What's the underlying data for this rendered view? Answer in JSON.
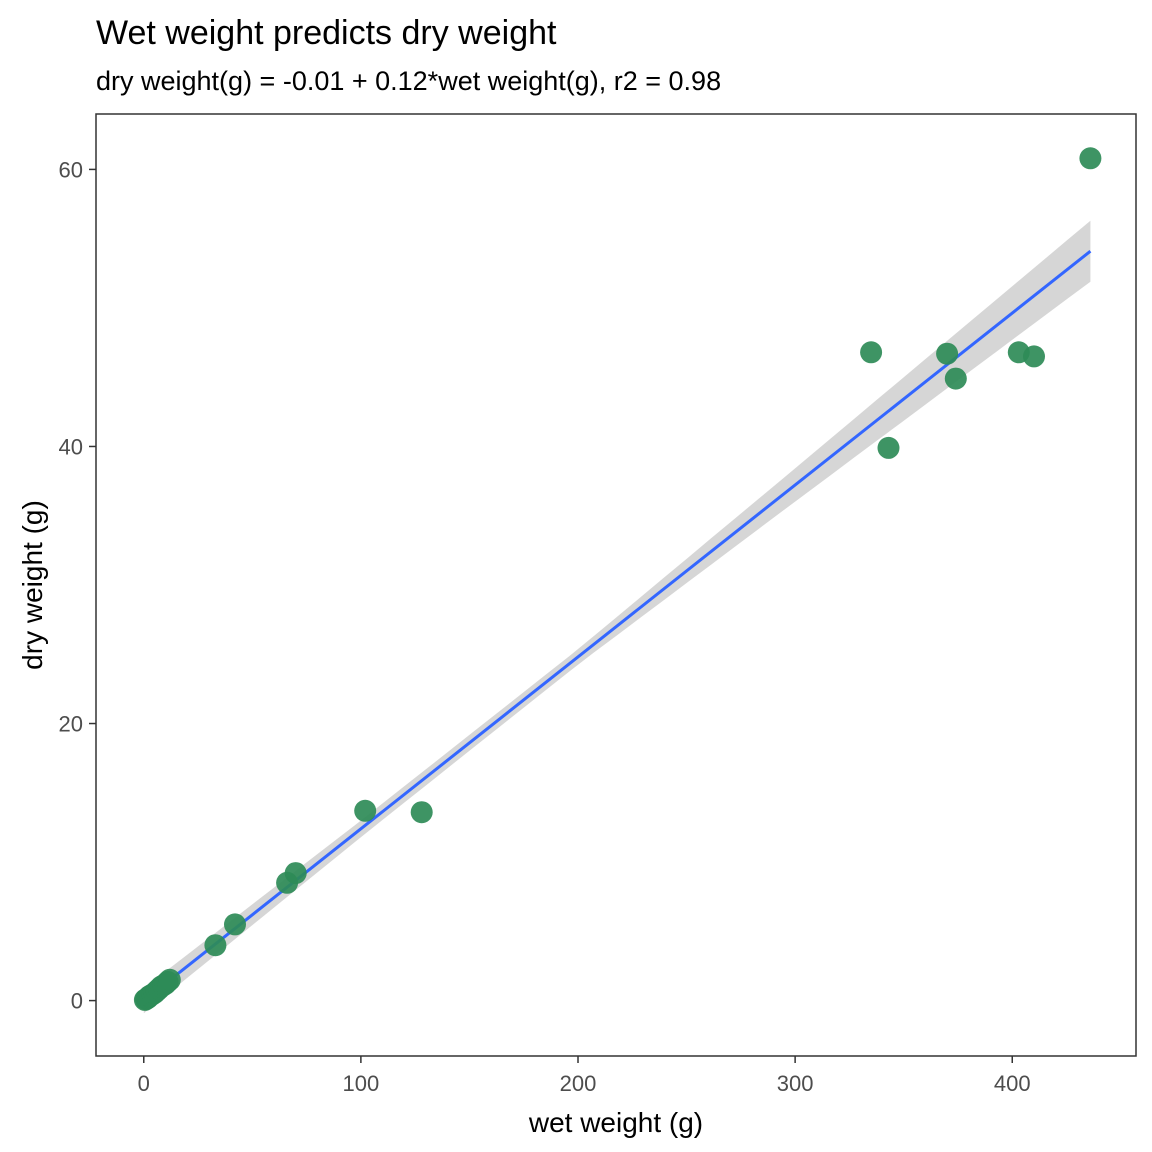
{
  "chart_data": {
    "type": "scatter",
    "title": "Wet weight predicts dry weight",
    "subtitle": "dry weight(g) = -0.01 + 0.12*wet weight(g), r2 = 0.98",
    "xlabel": "wet weight (g)",
    "ylabel": "dry weight (g)",
    "xlim": [
      -22,
      457
    ],
    "ylim": [
      -4,
      64
    ],
    "x_ticks": [
      0,
      100,
      200,
      300,
      400
    ],
    "y_ticks": [
      0,
      20,
      40,
      60
    ],
    "grid": false,
    "points": {
      "color": "#2e8b57",
      "x": [
        0.5,
        1,
        1.5,
        2,
        2.5,
        3,
        4,
        5,
        6,
        7,
        8,
        9,
        10,
        11,
        12,
        33,
        42,
        66,
        70,
        102,
        128,
        335,
        343,
        370,
        374,
        403,
        410,
        436
      ],
      "y": [
        0.05,
        0.1,
        0.15,
        0.2,
        0.3,
        0.35,
        0.45,
        0.55,
        0.7,
        0.85,
        1.0,
        1.1,
        1.2,
        1.35,
        1.5,
        4.0,
        5.5,
        8.5,
        9.2,
        13.7,
        13.6,
        46.8,
        39.9,
        46.7,
        44.9,
        46.8,
        46.5,
        60.8
      ]
    },
    "fit": {
      "color": "#3366ff",
      "intercept": -0.01,
      "slope": 0.1241,
      "x_range": [
        0,
        436
      ],
      "band_color": "#cccccc",
      "band_halfwidth_at_x": [
        [
          0,
          0.9
        ],
        [
          100,
          0.6
        ],
        [
          200,
          0.55
        ],
        [
          300,
          1.2
        ],
        [
          436,
          2.2
        ]
      ]
    }
  }
}
